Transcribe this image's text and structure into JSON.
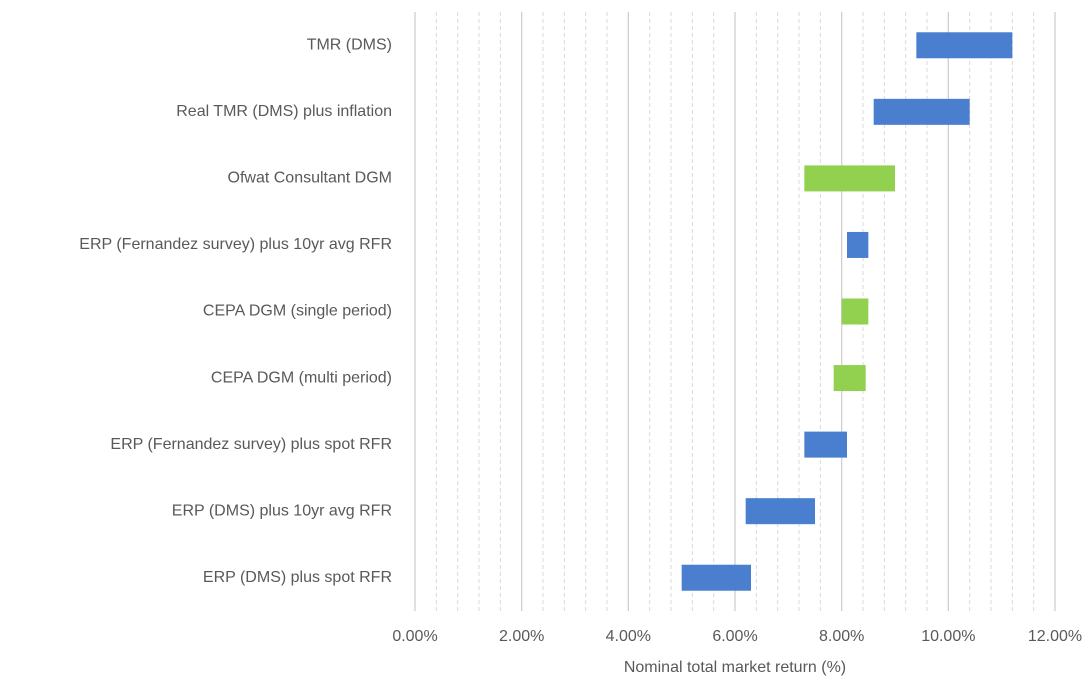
{
  "chart_data": {
    "type": "floating_bar",
    "x_label": "Nominal total market return (%)",
    "categories": [
      "TMR (DMS)",
      "Real TMR (DMS) plus inflation",
      "Ofwat Consultant DGM",
      "ERP (Fernandez survey) plus 10yr avg RFR",
      "CEPA DGM (single period)",
      "CEPA DGM (multi period)",
      "ERP (Fernandez survey) plus spot RFR",
      "ERP (DMS) plus 10yr avg RFR",
      "ERP (DMS) plus spot RFR"
    ],
    "low": [
      9.4,
      8.6,
      7.3,
      8.1,
      8.0,
      7.85,
      7.3,
      6.2,
      5.0
    ],
    "high": [
      11.2,
      10.4,
      9.0,
      8.5,
      8.5,
      8.45,
      8.1,
      7.5,
      6.3
    ],
    "colors": [
      "#4a7fcf",
      "#4a7fcf",
      "#92d050",
      "#4a7fcf",
      "#92d050",
      "#92d050",
      "#4a7fcf",
      "#4a7fcf",
      "#4a7fcf"
    ],
    "xlim": [
      0,
      12
    ],
    "xticks": [
      {
        "value": 0,
        "label": "0.00%"
      },
      {
        "value": 2,
        "label": "2.00%"
      },
      {
        "value": 4,
        "label": "4.00%"
      },
      {
        "value": 6,
        "label": "6.00%"
      },
      {
        "value": 8,
        "label": "8.00%"
      },
      {
        "value": 10,
        "label": "10.00%"
      },
      {
        "value": 12,
        "label": "12.00%"
      }
    ],
    "grid": true
  }
}
